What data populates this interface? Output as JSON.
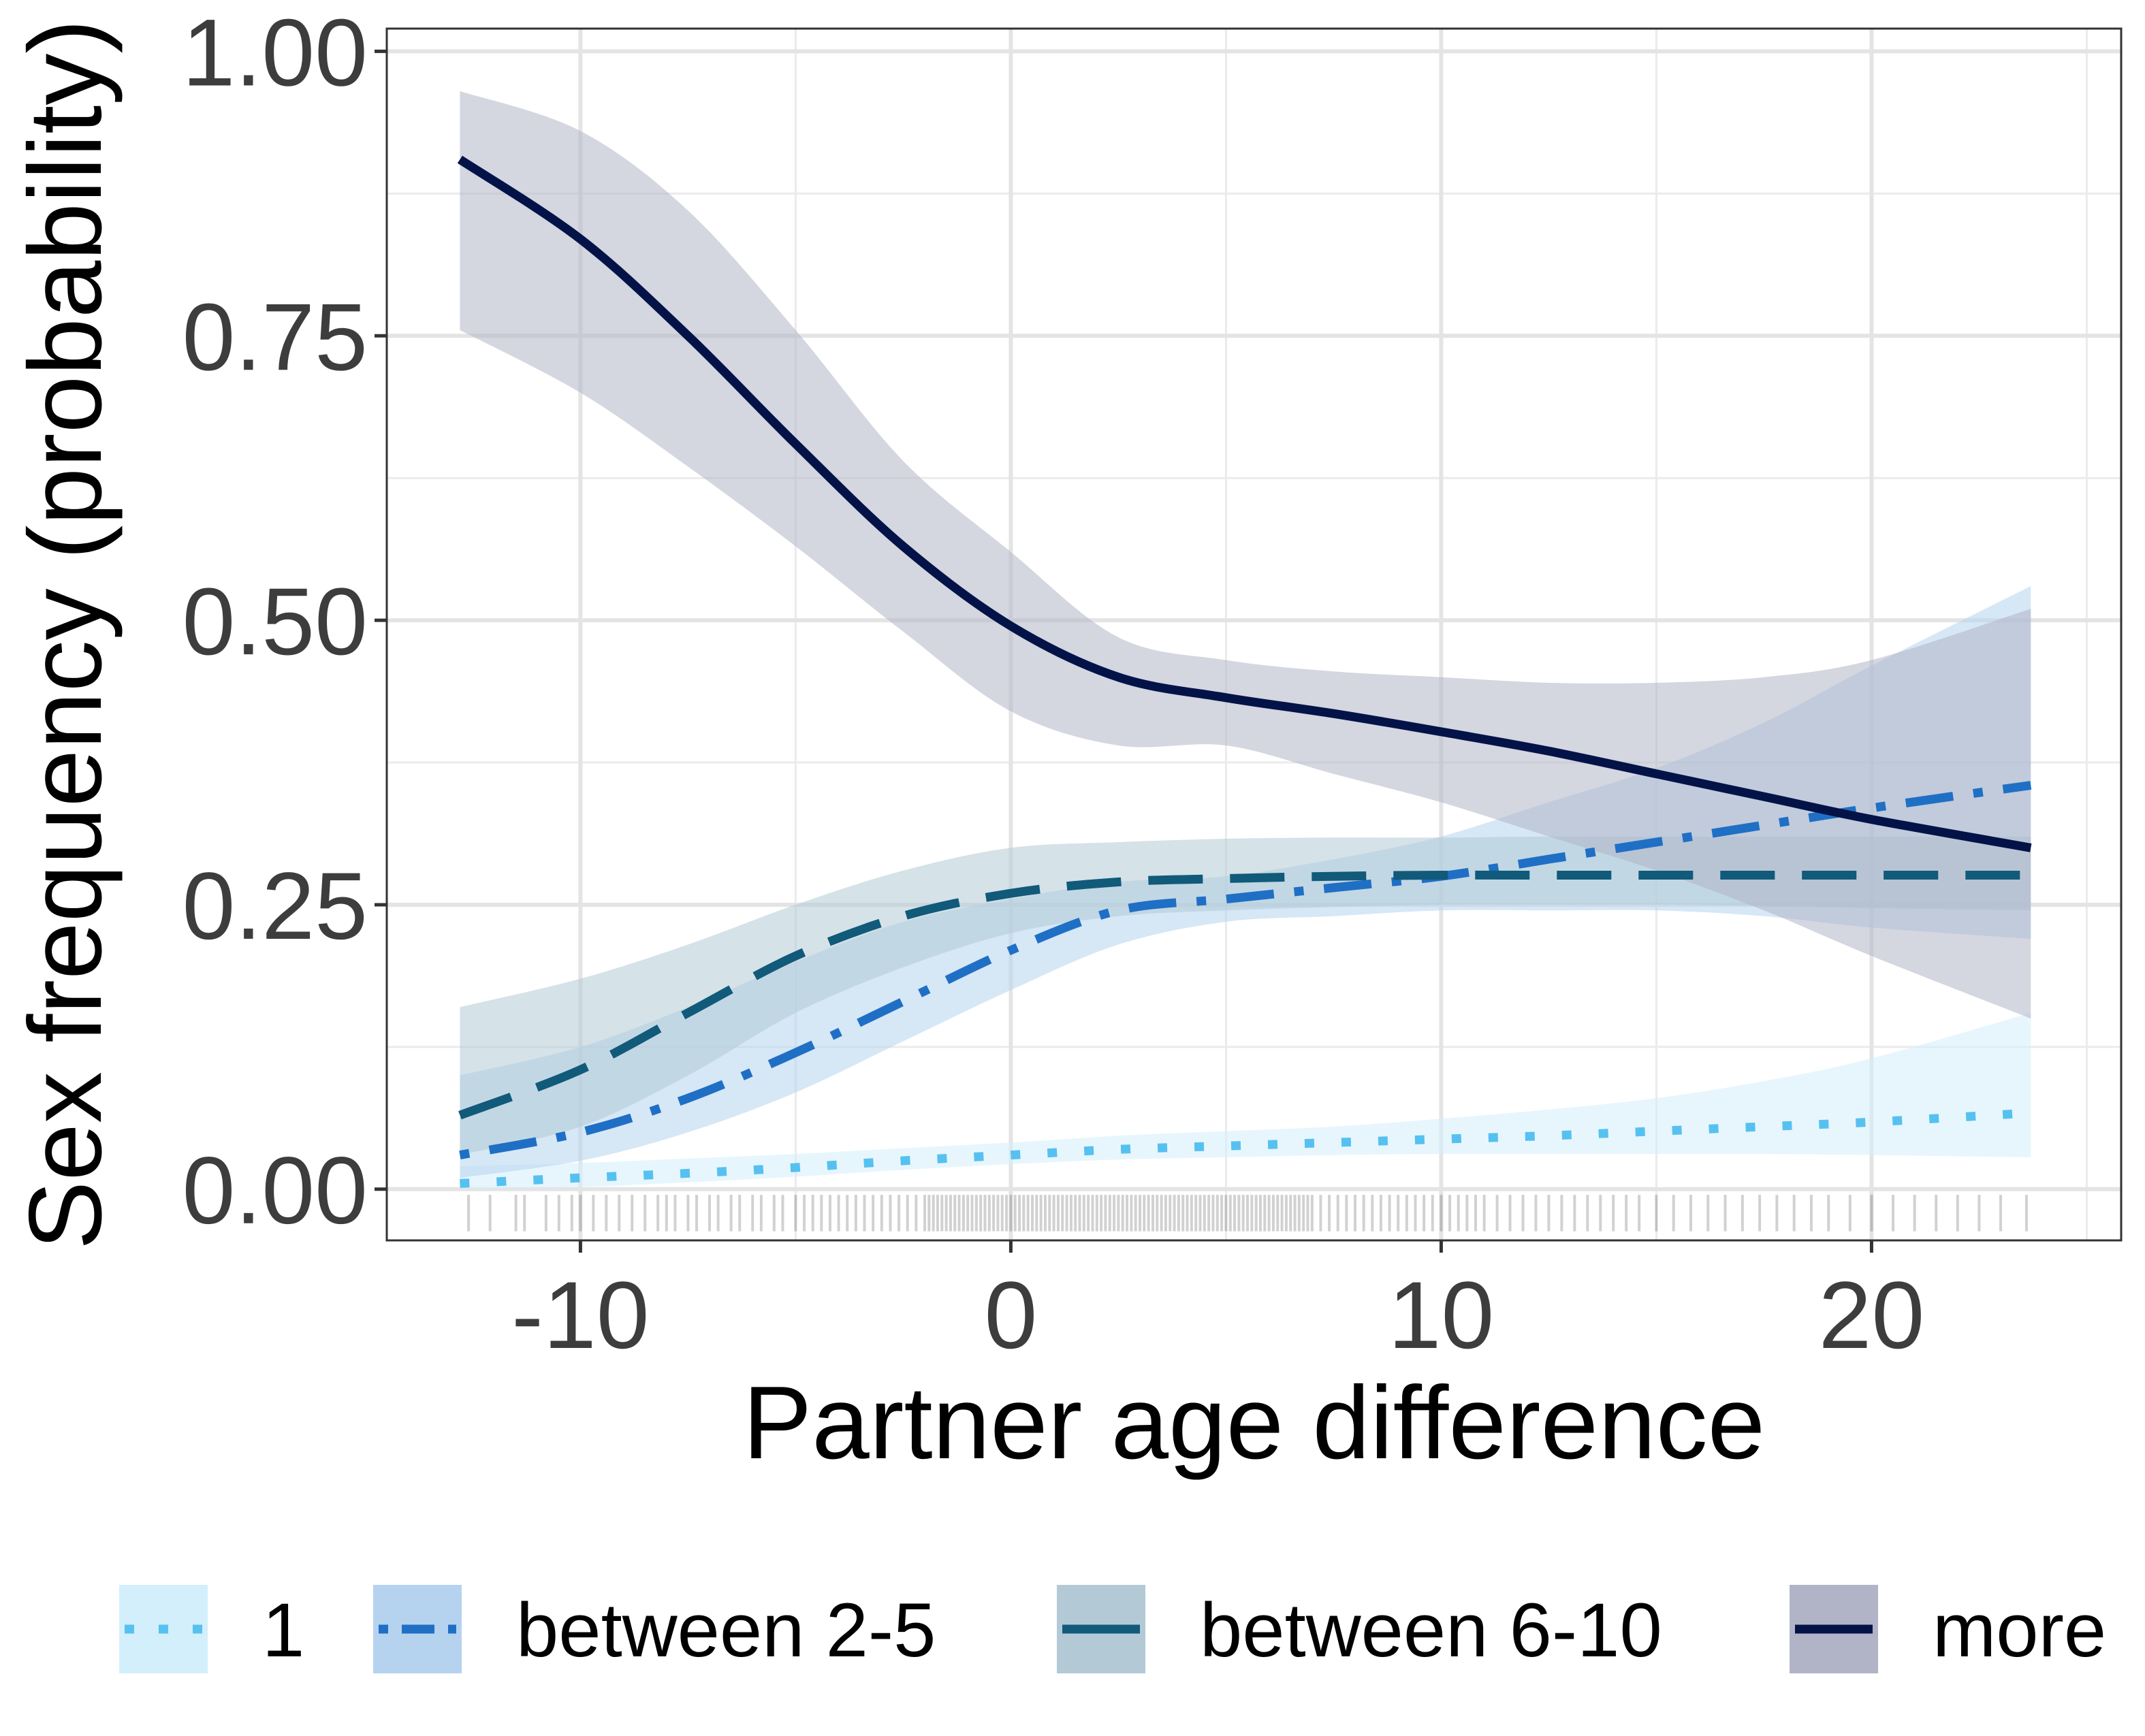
{
  "chart_data": {
    "type": "line",
    "title": "",
    "xlabel": "Partner age difference",
    "ylabel": "Sex frequency (probability)",
    "xlim": [
      -14.5,
      25.8
    ],
    "ylim": [
      -0.045,
      1.02
    ],
    "x_ticks": [
      -10,
      0,
      10,
      20
    ],
    "x_tick_labels": [
      "-10",
      "0",
      "10",
      "20"
    ],
    "y_ticks": [
      0,
      0.25,
      0.5,
      0.75,
      1
    ],
    "y_tick_labels": [
      "0.00",
      "0.25",
      "0.50",
      "0.75",
      "1.00"
    ],
    "grid": true,
    "legend_position": "bottom",
    "x": [
      -12.8,
      -10,
      -7.5,
      -5,
      -2.5,
      0,
      2.5,
      5,
      7.5,
      10,
      12.5,
      15,
      17.5,
      20,
      23.7
    ],
    "series": [
      {
        "name": "1",
        "line_color": "#56c1f0",
        "fill_color": "#d3effb",
        "dash": "dotted",
        "values": [
          0.005,
          0.01,
          0.014,
          0.019,
          0.025,
          0.03,
          0.035,
          0.038,
          0.041,
          0.044,
          0.047,
          0.051,
          0.055,
          0.059,
          0.067
        ],
        "lower": [
          0.0,
          0.002,
          0.006,
          0.011,
          0.017,
          0.022,
          0.026,
          0.028,
          0.03,
          0.031,
          0.031,
          0.031,
          0.031,
          0.03,
          0.028
        ],
        "upper": [
          0.02,
          0.023,
          0.027,
          0.031,
          0.036,
          0.041,
          0.047,
          0.051,
          0.055,
          0.062,
          0.07,
          0.08,
          0.095,
          0.115,
          0.155
        ]
      },
      {
        "name": "between 2-5",
        "line_color": "#1f6fc5",
        "fill_color": "#b5d3ef",
        "dash": "dotdash",
        "values": [
          0.03,
          0.05,
          0.08,
          0.12,
          0.165,
          0.21,
          0.245,
          0.255,
          0.265,
          0.275,
          0.29,
          0.305,
          0.32,
          0.335,
          0.355
        ],
        "lower": [
          0.01,
          0.025,
          0.05,
          0.085,
          0.13,
          0.175,
          0.215,
          0.235,
          0.24,
          0.245,
          0.245,
          0.245,
          0.24,
          0.23,
          0.22
        ],
        "upper": [
          0.1,
          0.125,
          0.16,
          0.2,
          0.235,
          0.255,
          0.27,
          0.275,
          0.29,
          0.31,
          0.34,
          0.37,
          0.41,
          0.46,
          0.53
        ]
      },
      {
        "name": "between 6-10",
        "line_color": "#115a7a",
        "fill_color": "#b3cad6",
        "dash": "dashed",
        "values": [
          0.065,
          0.105,
          0.155,
          0.205,
          0.24,
          0.26,
          0.27,
          0.273,
          0.275,
          0.276,
          0.276,
          0.276,
          0.276,
          0.276,
          0.276
        ],
        "lower": [
          0.03,
          0.055,
          0.1,
          0.155,
          0.195,
          0.225,
          0.24,
          0.245,
          0.248,
          0.25,
          0.25,
          0.25,
          0.249,
          0.247,
          0.245
        ],
        "upper": [
          0.16,
          0.185,
          0.215,
          0.25,
          0.28,
          0.3,
          0.305,
          0.308,
          0.309,
          0.309,
          0.31,
          0.31,
          0.31,
          0.31,
          0.31
        ]
      },
      {
        "name": "more",
        "line_color": "#031348",
        "fill_color": "#b1b4c6",
        "dash": "solid",
        "values": [
          0.905,
          0.835,
          0.75,
          0.655,
          0.565,
          0.495,
          0.45,
          0.432,
          0.418,
          0.402,
          0.385,
          0.365,
          0.345,
          0.325,
          0.3
        ],
        "lower": [
          0.755,
          0.7,
          0.635,
          0.565,
          0.49,
          0.42,
          0.39,
          0.39,
          0.365,
          0.34,
          0.31,
          0.28,
          0.245,
          0.205,
          0.15
        ],
        "upper": [
          0.965,
          0.93,
          0.86,
          0.755,
          0.64,
          0.56,
          0.485,
          0.465,
          0.455,
          0.45,
          0.445,
          0.445,
          0.45,
          0.465,
          0.51
        ]
      }
    ],
    "rug_x": [
      -12.6,
      -12.1,
      -11.5,
      -11.3,
      -10.8,
      -10.5,
      -10.2,
      -10,
      -9.7,
      -9.4,
      -9.1,
      -8.8,
      -8.5,
      -8.2,
      -8,
      -7.8,
      -7.5,
      -7.3,
      -7,
      -6.8,
      -6.5,
      -6.3,
      -6,
      -5.8,
      -5.5,
      -5.3,
      -5,
      -4.8,
      -4.6,
      -4.4,
      -4.2,
      -4,
      -3.8,
      -3.6,
      -3.4,
      -3.2,
      -3,
      -2.8,
      -2.6,
      -2.4,
      -2.2,
      -2,
      -1.9,
      -1.8,
      -1.7,
      -1.6,
      -1.5,
      -1.4,
      -1.3,
      -1.2,
      -1.1,
      -1,
      -0.9,
      -0.8,
      -0.7,
      -0.6,
      -0.5,
      -0.4,
      -0.3,
      -0.2,
      -0.1,
      0,
      0.1,
      0.2,
      0.3,
      0.4,
      0.5,
      0.6,
      0.7,
      0.8,
      0.9,
      1,
      1.1,
      1.2,
      1.3,
      1.4,
      1.5,
      1.6,
      1.7,
      1.8,
      1.9,
      2,
      2.1,
      2.2,
      2.3,
      2.4,
      2.5,
      2.6,
      2.7,
      2.8,
      2.9,
      3,
      3.1,
      3.2,
      3.3,
      3.4,
      3.5,
      3.6,
      3.7,
      3.8,
      3.9,
      4,
      4.1,
      4.2,
      4.3,
      4.4,
      4.5,
      4.6,
      4.7,
      4.8,
      4.9,
      5,
      5.1,
      5.2,
      5.3,
      5.4,
      5.5,
      5.6,
      5.7,
      5.8,
      5.9,
      6,
      6.1,
      6.2,
      6.3,
      6.4,
      6.5,
      6.6,
      6.7,
      6.8,
      6.9,
      7,
      7.2,
      7.4,
      7.6,
      7.8,
      8,
      8.2,
      8.4,
      8.6,
      8.8,
      9,
      9.2,
      9.4,
      9.6,
      9.8,
      10,
      10.2,
      10.4,
      10.6,
      10.8,
      11,
      11.3,
      11.6,
      11.9,
      12.2,
      12.5,
      12.8,
      13.1,
      13.4,
      13.7,
      14,
      14.3,
      14.6,
      15,
      15.4,
      15.8,
      16.2,
      16.6,
      17,
      17.4,
      17.8,
      18.2,
      18.6,
      19,
      19.5,
      20,
      20.5,
      21,
      21.5,
      22,
      22.5,
      23,
      23.6
    ]
  }
}
